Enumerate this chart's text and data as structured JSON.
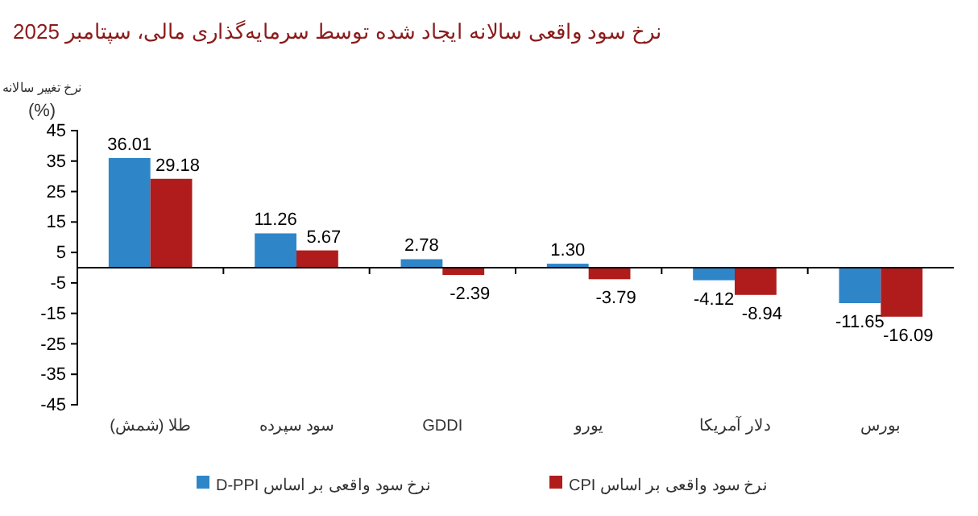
{
  "chart_data": {
    "type": "bar",
    "title": "نرخ سود واقعی سالانه ایجاد شده توسط سرمایه‌گذاری مالی، سپتامبر 2025",
    "ylabel": "نرخ تغییر سالانه\n(%)",
    "categories": [
      "طلا (شمش)",
      "سود سپرده",
      "GDDI",
      "یورو",
      "دلار آمریکا",
      "بورس"
    ],
    "series": [
      {
        "name": "نرخ سود واقعی بر اساس D-PPI",
        "color": "#2e86c8",
        "values": [
          36.01,
          11.26,
          2.78,
          1.3,
          -4.12,
          -11.65
        ],
        "value_labels": [
          "36.01",
          "11.26",
          "2.78",
          "1.30",
          "-4.12",
          "-11.65"
        ]
      },
      {
        "name": "نرخ سود واقعی بر اساس CPI",
        "color": "#b01c1c",
        "values": [
          29.18,
          5.67,
          -2.39,
          -3.79,
          -8.94,
          -16.09
        ],
        "value_labels": [
          "29.18",
          "5.67",
          "-2.39",
          "-3.79",
          "-8.94",
          "-16.09"
        ]
      }
    ],
    "ylim": [
      -45,
      45
    ],
    "yticks": [
      -45,
      -35,
      -25,
      -15,
      -5,
      5,
      15,
      25,
      35,
      45
    ],
    "legend": "bottom",
    "grid": false
  }
}
